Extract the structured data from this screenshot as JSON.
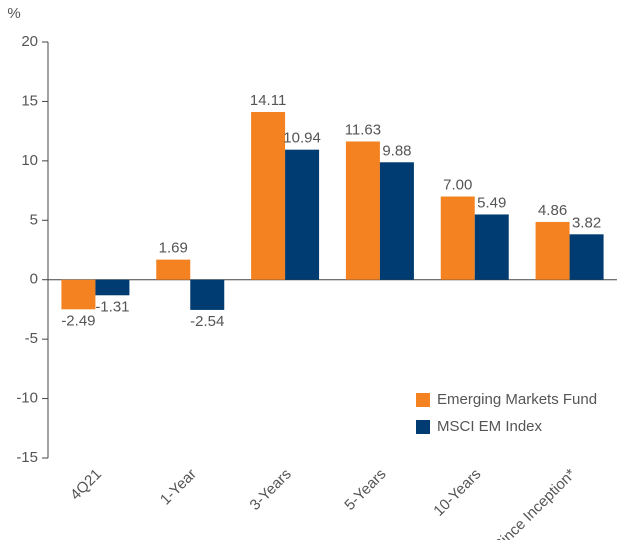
{
  "chart_data": {
    "type": "bar",
    "y_label": "%",
    "categories": [
      "4Q21",
      "1-Year",
      "3-Years",
      "5-Years",
      "10-Years",
      "Since Inception*"
    ],
    "series": [
      {
        "name": "Emerging Markets Fund",
        "color": "#f58220",
        "values": [
          -2.49,
          1.69,
          14.11,
          11.63,
          7.0,
          4.86
        ],
        "value_labels": [
          "-2.49",
          "1.69",
          "14.11",
          "11.63",
          "7.00",
          "4.86"
        ]
      },
      {
        "name": "MSCI EM Index",
        "color": "#003c71",
        "values": [
          -1.31,
          -2.54,
          10.94,
          9.88,
          5.49,
          3.82
        ],
        "value_labels": [
          "-1.31",
          "-2.54",
          "10.94",
          "9.88",
          "5.49",
          "3.82"
        ]
      }
    ],
    "ylim": [
      -15,
      20
    ],
    "yticks": [
      -15,
      -10,
      -5,
      0,
      5,
      10,
      15,
      20
    ],
    "legend": "lower right"
  }
}
